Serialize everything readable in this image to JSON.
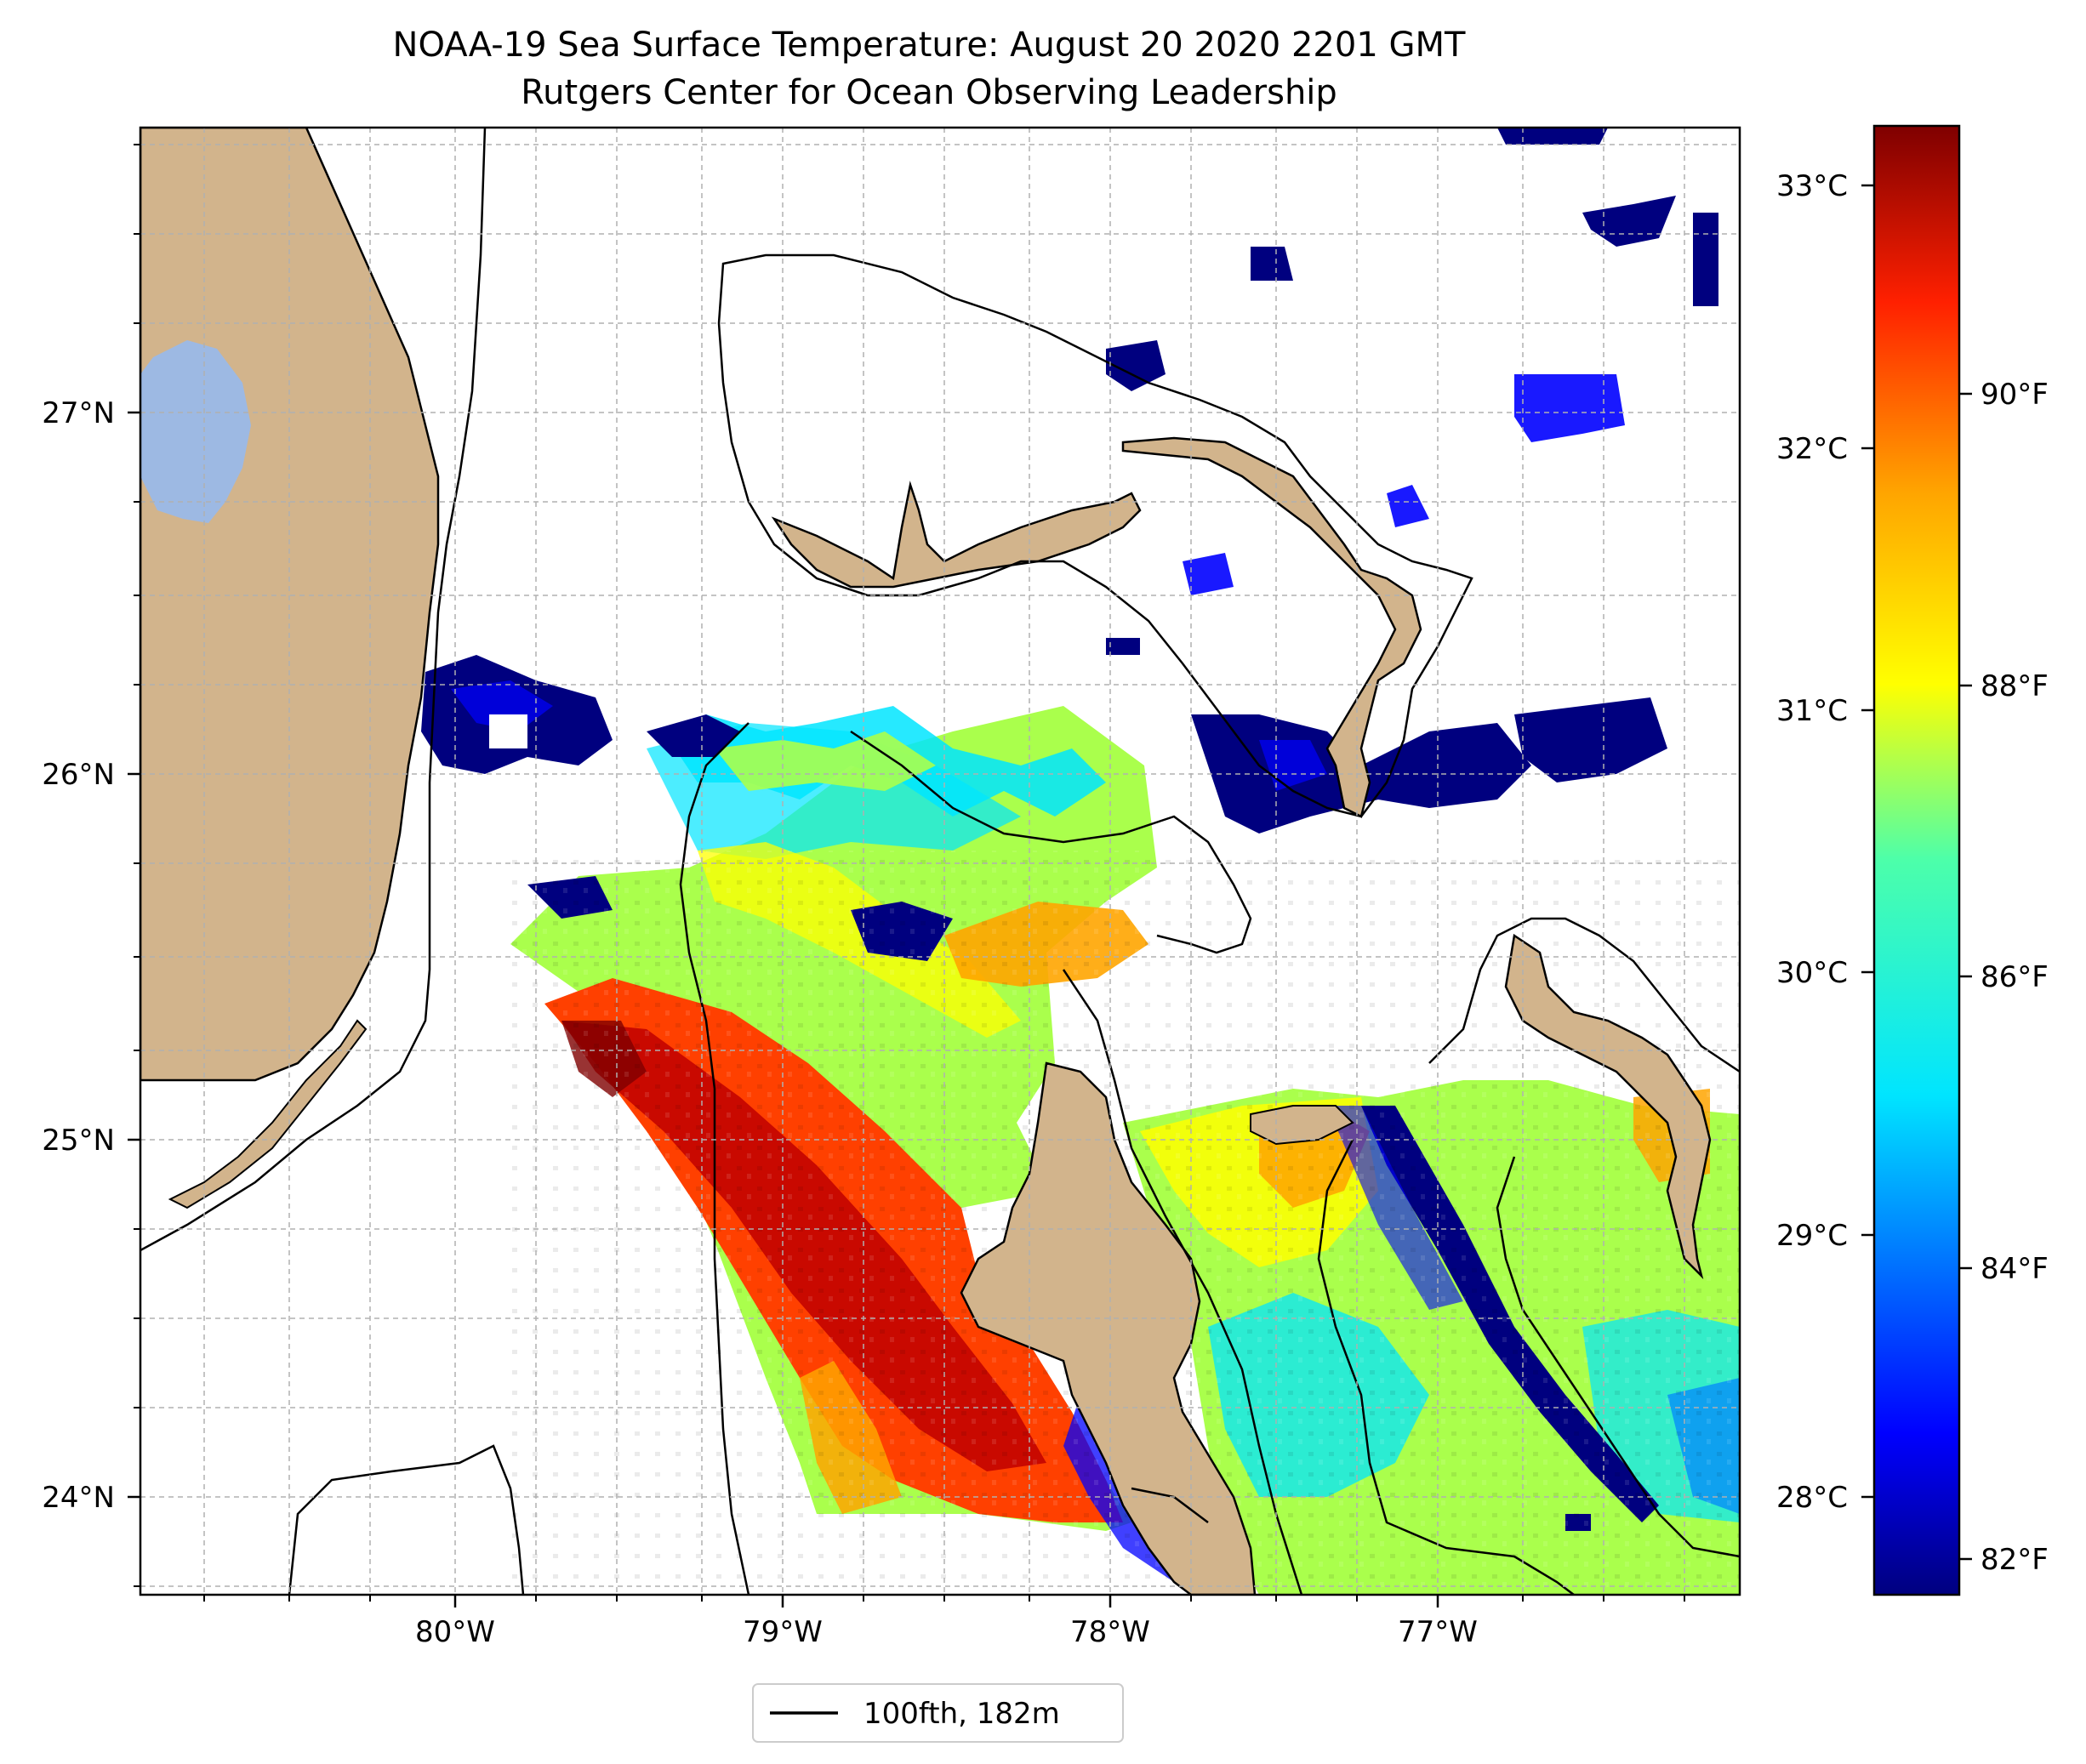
{
  "title_line1": "NOAA-19 Sea Surface Temperature: August 20 2020 2201 GMT",
  "title_line2": "Rutgers Center for Ocean Observing Leadership",
  "lat_labels": [
    "27°N",
    "26°N",
    "25°N",
    "24°N"
  ],
  "lon_labels": [
    "80°W",
    "79°W",
    "78°W",
    "77°W"
  ],
  "colorbar": {
    "celsius_labels": [
      "33°C",
      "32°C",
      "31°C",
      "30°C",
      "29°C",
      "28°C"
    ],
    "fahrenheit_labels": [
      "90°F",
      "88°F",
      "86°F",
      "84°F",
      "82°F"
    ],
    "colors": [
      "#00007f",
      "#0000ff",
      "#0080ff",
      "#00e5ff",
      "#4cffaa",
      "#aaff4c",
      "#ffff00",
      "#ffa500",
      "#ff4000",
      "#bf0000",
      "#7f0000"
    ]
  },
  "legend": {
    "label": "100fth, 182m",
    "color": "#000000"
  },
  "colors": {
    "land": "#d2b48c",
    "lake": "#9db9e3",
    "ocean_nodata": "#ffffff",
    "grid": "#b0b0b0"
  }
}
